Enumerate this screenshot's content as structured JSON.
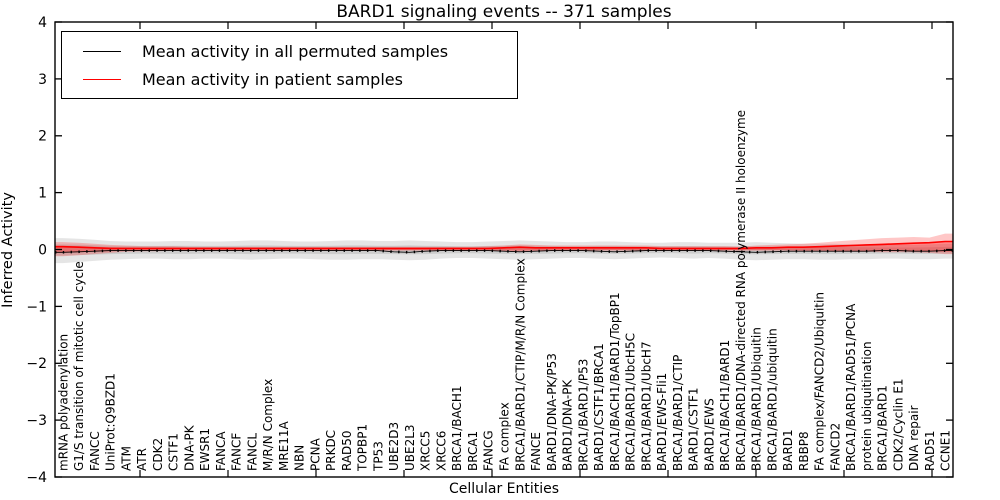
{
  "chart_data": {
    "type": "line",
    "title": "BARD1 signaling events -- 371 samples",
    "xlabel": "Cellular Entities",
    "ylabel": "Inferred Activity",
    "ylim": [
      -4,
      4
    ],
    "yticks": [
      4,
      3,
      2,
      1,
      0,
      -1,
      -2,
      -3,
      -4
    ],
    "grid": false,
    "legend_position": "upper left",
    "categories": [
      "mRNA polyadenylation",
      "G1/S transition of mitotic cell cycle",
      "FANCC",
      "UniProt:Q9BZD1",
      "ATM",
      "ATR",
      "CDK2",
      "CSTF1",
      "DNA-PK",
      "EWSR1",
      "FANCA",
      "FANCF",
      "FANCL",
      "M/R/N Complex",
      "MRE11A",
      "NBN",
      "PCNA",
      "PRKDC",
      "RAD50",
      "TOPBP1",
      "TP53",
      "UBE2D3",
      "UBE2L3",
      "XRCC5",
      "XRCC6",
      "BRCA1/BACH1",
      "BRCA1",
      "FANCG",
      "FA complex",
      "BRCA1/BARD1/CTIP/M/R/N Complex",
      "FANCE",
      "BARD1/DNA-PK/P53",
      "BARD1/DNA-PK",
      "BRCA1/BARD1/P53",
      "BARD1/CSTF1/BRCA1",
      "BRCA1/BACH1/BARD1/TopBP1",
      "BRCA1/BARD1/UbcH5C",
      "BRCA1/BARD1/UbcH7",
      "BARD1/EWS-Fli1",
      "BRCA1/BARD1/CTIP",
      "BARD1/CSTF1",
      "BARD1/EWS",
      "BRCA1/BACH1/BARD1",
      "BRCA1/BARD1/DNA-directed RNA polymerase II holoenzyme",
      "BRCA1/BARD1/Ubiquitin",
      "BRCA1/BARD1/ubiquitin",
      "BARD1",
      "RBBP8",
      "FA complex/FANCD2/Ubiquitin",
      "FANCD2",
      "BRCA1/BARD1/RAD51/PCNA",
      "protein ubiquitination",
      "BRCA1/BARD1",
      "CDK2/Cyclin E1",
      "DNA repair",
      "RAD51",
      "CCNE1"
    ],
    "series": [
      {
        "name": "Mean activity in all permuted samples",
        "color": "#000000",
        "values": [
          -0.05,
          -0.04,
          -0.03,
          -0.02,
          -0.02,
          -0.02,
          -0.02,
          -0.02,
          -0.02,
          -0.02,
          -0.02,
          -0.02,
          -0.02,
          -0.02,
          -0.02,
          -0.02,
          -0.02,
          -0.02,
          -0.02,
          -0.02,
          -0.02,
          -0.04,
          -0.05,
          -0.03,
          -0.02,
          -0.02,
          -0.02,
          -0.02,
          -0.03,
          -0.04,
          -0.03,
          -0.02,
          -0.02,
          -0.02,
          -0.03,
          -0.04,
          -0.03,
          -0.02,
          -0.02,
          -0.02,
          -0.02,
          -0.02,
          -0.03,
          -0.04,
          -0.05,
          -0.04,
          -0.03,
          -0.03,
          -0.03,
          -0.03,
          -0.03,
          -0.03,
          -0.02,
          -0.02,
          -0.03,
          -0.03,
          -0.02
        ],
        "band_upper": [
          0.2,
          0.19,
          0.17,
          0.15,
          0.14,
          0.14,
          0.14,
          0.15,
          0.15,
          0.14,
          0.14,
          0.15,
          0.16,
          0.16,
          0.15,
          0.14,
          0.14,
          0.15,
          0.16,
          0.16,
          0.15,
          0.15,
          0.16,
          0.15,
          0.14,
          0.13,
          0.13,
          0.14,
          0.15,
          0.16,
          0.15,
          0.14,
          0.13,
          0.13,
          0.14,
          0.14,
          0.13,
          0.12,
          0.12,
          0.13,
          0.13,
          0.12,
          0.12,
          0.12,
          0.13,
          0.12,
          0.11,
          0.1,
          0.1,
          0.1,
          0.09,
          0.09,
          0.08,
          0.08,
          0.08,
          0.09,
          0.1
        ],
        "band_lower": [
          -0.24,
          -0.22,
          -0.2,
          -0.18,
          -0.17,
          -0.16,
          -0.16,
          -0.17,
          -0.17,
          -0.16,
          -0.16,
          -0.17,
          -0.18,
          -0.17,
          -0.16,
          -0.16,
          -0.17,
          -0.18,
          -0.18,
          -0.17,
          -0.17,
          -0.18,
          -0.19,
          -0.18,
          -0.16,
          -0.15,
          -0.15,
          -0.16,
          -0.17,
          -0.18,
          -0.17,
          -0.16,
          -0.15,
          -0.15,
          -0.16,
          -0.17,
          -0.16,
          -0.15,
          -0.14,
          -0.15,
          -0.16,
          -0.15,
          -0.16,
          -0.18,
          -0.19,
          -0.18,
          -0.17,
          -0.17,
          -0.18,
          -0.18,
          -0.17,
          -0.17,
          -0.16,
          -0.16,
          -0.17,
          -0.17,
          -0.16
        ]
      },
      {
        "name": "Mean activity in patient samples",
        "color": "#ff0000",
        "values": [
          0.05,
          0.04,
          0.03,
          0.02,
          0.02,
          0.02,
          0.02,
          0.02,
          0.02,
          0.02,
          0.02,
          0.02,
          0.02,
          0.02,
          0.02,
          0.02,
          0.02,
          0.02,
          0.02,
          0.02,
          0.02,
          0.02,
          0.02,
          0.02,
          0.02,
          0.02,
          0.02,
          0.02,
          0.03,
          0.04,
          0.03,
          0.03,
          0.03,
          0.03,
          0.03,
          0.03,
          0.03,
          0.03,
          0.02,
          0.02,
          0.02,
          0.02,
          0.02,
          0.02,
          0.03,
          0.03,
          0.04,
          0.04,
          0.05,
          0.06,
          0.07,
          0.08,
          0.09,
          0.1,
          0.11,
          0.12,
          0.14
        ],
        "band_upper": [
          0.13,
          0.12,
          0.1,
          0.08,
          0.07,
          0.06,
          0.06,
          0.06,
          0.05,
          0.05,
          0.05,
          0.05,
          0.05,
          0.05,
          0.05,
          0.05,
          0.05,
          0.05,
          0.05,
          0.05,
          0.05,
          0.05,
          0.05,
          0.05,
          0.05,
          0.05,
          0.05,
          0.06,
          0.07,
          0.09,
          0.08,
          0.07,
          0.07,
          0.07,
          0.07,
          0.07,
          0.07,
          0.07,
          0.06,
          0.06,
          0.06,
          0.06,
          0.06,
          0.05,
          0.07,
          0.08,
          0.09,
          0.1,
          0.12,
          0.14,
          0.16,
          0.18,
          0.2,
          0.21,
          0.22,
          0.21,
          0.28
        ],
        "band_lower": [
          -0.12,
          -0.1,
          -0.08,
          -0.06,
          -0.04,
          -0.03,
          -0.03,
          -0.02,
          -0.02,
          -0.02,
          -0.02,
          -0.02,
          -0.02,
          -0.02,
          -0.02,
          -0.02,
          -0.02,
          -0.02,
          -0.02,
          -0.02,
          -0.02,
          -0.02,
          -0.02,
          -0.02,
          -0.02,
          -0.02,
          -0.02,
          -0.02,
          -0.03,
          -0.04,
          -0.03,
          -0.02,
          -0.02,
          -0.02,
          -0.02,
          -0.02,
          -0.02,
          -0.02,
          -0.02,
          -0.02,
          -0.02,
          -0.02,
          -0.02,
          -0.02,
          -0.02,
          -0.02,
          -0.02,
          -0.03,
          -0.03,
          -0.04,
          -0.04,
          -0.04,
          -0.05,
          -0.05,
          -0.05,
          -0.06,
          -0.08
        ]
      }
    ]
  }
}
